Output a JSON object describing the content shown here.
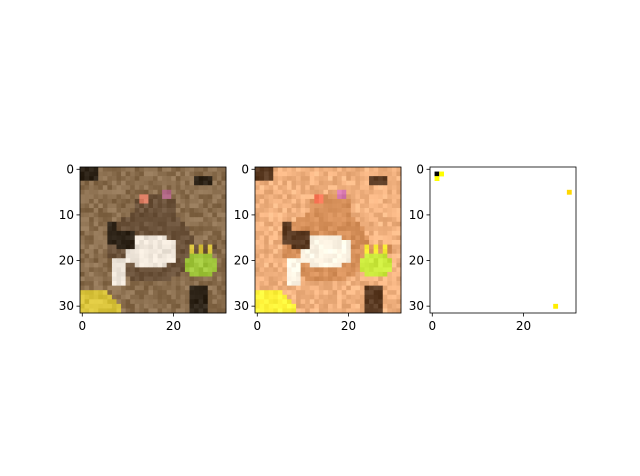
{
  "figure": {
    "background": "#ffffff"
  },
  "chart_data": [
    {
      "type": "heatmap",
      "content": "pixelated photo of a frog (brown tones)",
      "image_size": [
        32,
        32
      ],
      "x_ticks": [
        0,
        20
      ],
      "y_ticks": [
        0,
        10,
        20,
        30
      ],
      "xlim": [
        -0.5,
        31.5
      ],
      "ylim": [
        31.5,
        -0.5
      ],
      "palette": {
        "background": "#8a6e4e",
        "dark": "#2e2418",
        "mid": "#6b523a",
        "light": "#efe6da",
        "eye": "#d87a60",
        "eye2": "#b46a88",
        "green": "#9fc53a",
        "yellow": "#d8c23a"
      }
    },
    {
      "type": "heatmap",
      "content": "same frog image with brightened / saturated colors",
      "image_size": [
        32,
        32
      ],
      "x_ticks": [
        0,
        20
      ],
      "y_ticks": [
        0,
        10,
        20,
        30
      ],
      "xlim": [
        -0.5,
        31.5
      ],
      "ylim": [
        31.5,
        -0.5
      ],
      "palette": {
        "background": "#f2b280",
        "dark": "#5a3a22",
        "mid": "#d6905a",
        "light": "#fff6e6",
        "eye": "#ff7a5a",
        "eye2": "#d87ab0",
        "green": "#c8e63a",
        "yellow": "#fff23a"
      }
    },
    {
      "type": "heatmap",
      "content": "mostly white image with a few isolated colored pixels",
      "image_size": [
        32,
        32
      ],
      "x_ticks": [
        0,
        20
      ],
      "y_ticks": [
        0,
        10,
        20,
        30
      ],
      "xlim": [
        -0.5,
        31.5
      ],
      "ylim": [
        31.5,
        -0.5
      ],
      "points": [
        {
          "x": 1,
          "y": 1,
          "color": "#000000"
        },
        {
          "x": 2,
          "y": 1,
          "color": "#ffff00"
        },
        {
          "x": 1,
          "y": 2,
          "color": "#ffff00"
        },
        {
          "x": 30,
          "y": 5,
          "color": "#ffd700"
        },
        {
          "x": 27,
          "y": 30,
          "color": "#ffee00"
        }
      ],
      "palette": {
        "background": "#ffffff"
      }
    }
  ]
}
